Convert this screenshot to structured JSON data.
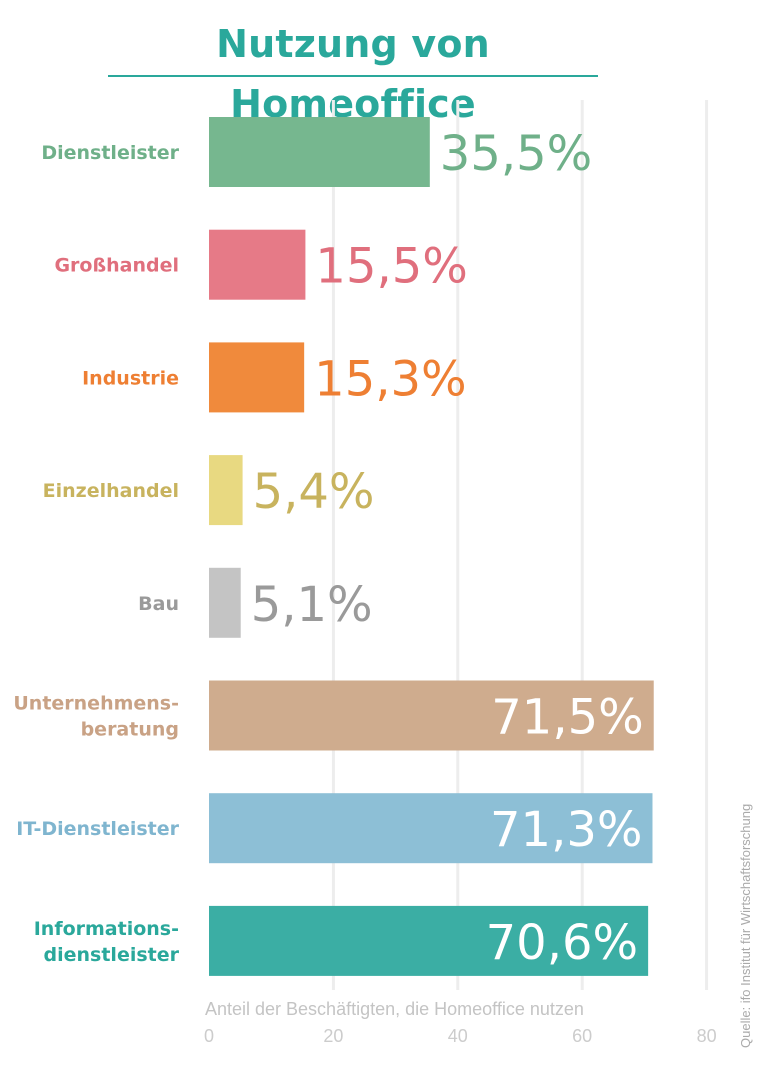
{
  "title": "Nutzung von Homeoffice",
  "source": "Quelle: ifo Institut für Wirtschaftsforschung",
  "chart_data": {
    "type": "bar",
    "orientation": "horizontal",
    "xlabel": "Anteil der Beschäftigten, die Homeoffice nutzen",
    "xlim": [
      0,
      80
    ],
    "xticks": [
      "0",
      "20",
      "40",
      "60",
      "80"
    ],
    "grid": true,
    "categories": [
      [
        "Dienstleister"
      ],
      [
        "Großhandel"
      ],
      [
        "Industrie"
      ],
      [
        "Einzelhandel"
      ],
      [
        "Bau"
      ],
      [
        "Unternehmens-",
        "beratung"
      ],
      [
        "IT-Dienstleister"
      ],
      [
        "Informations-",
        "dienstleister"
      ]
    ],
    "values": [
      35.5,
      15.5,
      15.3,
      5.4,
      5.1,
      71.5,
      71.3,
      70.6
    ],
    "value_labels": [
      "35,5%",
      "15,5%",
      "15,3%",
      "5,4%",
      "5,1%",
      "71,5%",
      "71,3%",
      "70,6%"
    ],
    "colors": [
      "#76b78f",
      "#e67a87",
      "#f08a3c",
      "#e8d981",
      "#c4c4c4",
      "#cfac8e",
      "#8dbfd6",
      "#3baea4"
    ],
    "label_colors": [
      "#6fb089",
      "#e06f7d",
      "#ee7f33",
      "#c8b35e",
      "#9a9a9a",
      "#c9a285",
      "#7fb5cf",
      "#2aa89b"
    ],
    "value_label_placement": [
      "outside",
      "outside",
      "outside",
      "outside",
      "outside",
      "inside",
      "inside",
      "inside"
    ]
  }
}
